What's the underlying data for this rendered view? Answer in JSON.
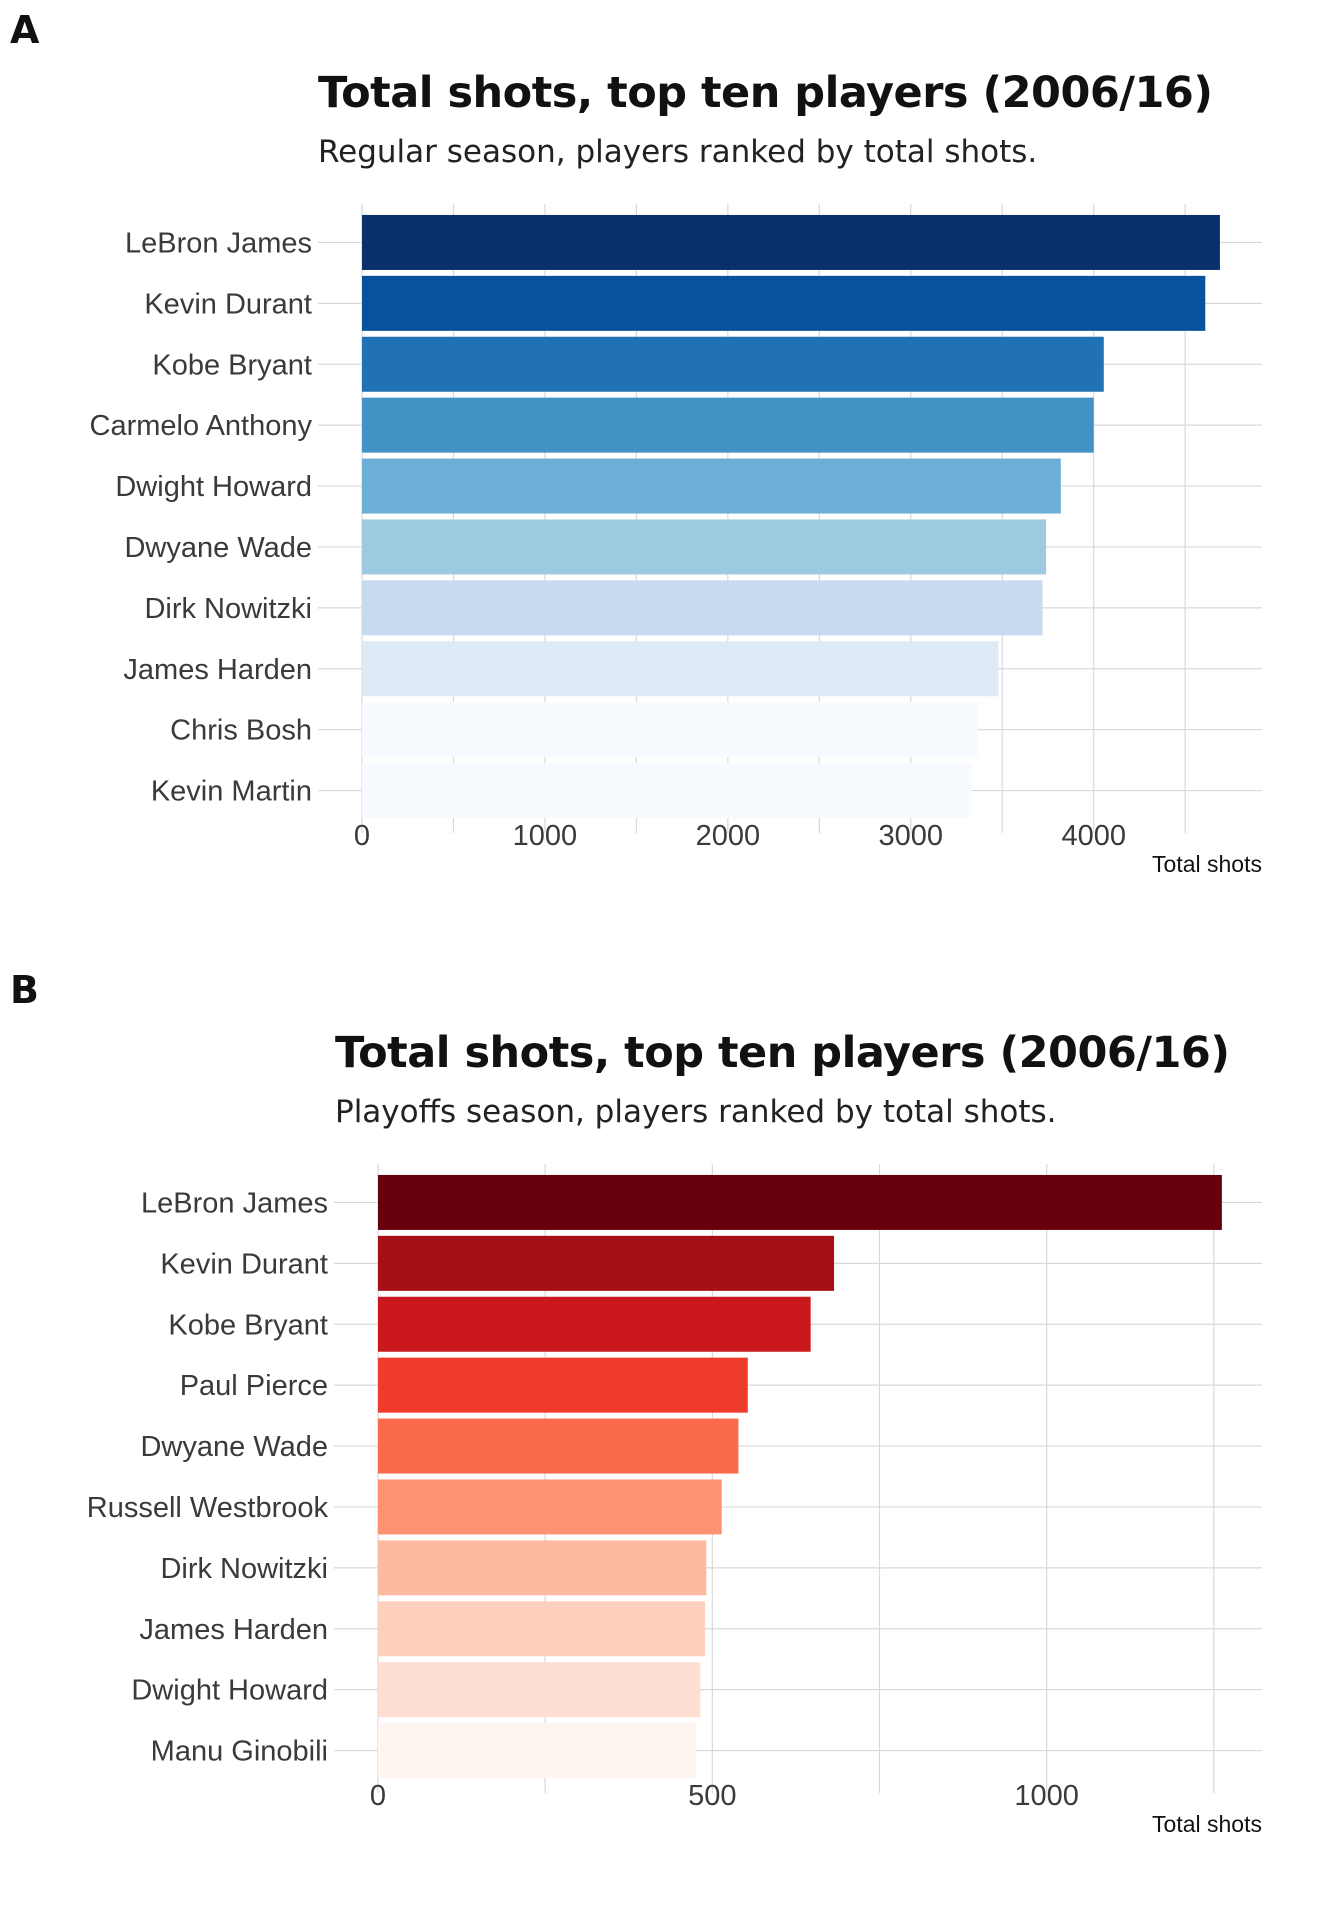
{
  "charts": [
    {
      "panel_label": "A",
      "palette": [
        "#08306b",
        "#08519c",
        "#2171b5",
        "#4292c6",
        "#6baed6",
        "#9ecae1",
        "#c6dbef",
        "#deebf7",
        "#f7fbff",
        "#f7fbff"
      ],
      "chart_data": {
        "type": "bar",
        "orientation": "horizontal",
        "title": "Total shots, top ten players (2006/16)",
        "subtitle": "Regular season, players ranked by total shots.",
        "xlabel": "Total shots",
        "ylabel": "",
        "categories": [
          "LeBron James",
          "Kevin Durant",
          "Kobe Bryant",
          "Carmelo Anthony",
          "Dwight Howard",
          "Dwyane Wade",
          "Dirk Nowitzki",
          "James Harden",
          "Chris Bosh",
          "Kevin Martin"
        ],
        "values": [
          4690,
          4610,
          4055,
          4000,
          3820,
          3740,
          3720,
          3480,
          3370,
          3330
        ],
        "xlim": [
          0,
          4920
        ],
        "xticks": [
          0,
          1000,
          2000,
          3000,
          4000
        ],
        "xticks_labels": [
          "0",
          "1000",
          "2000",
          "3000",
          "4000"
        ],
        "grid": true
      }
    },
    {
      "panel_label": "B",
      "palette": [
        "#67000d",
        "#a50f15",
        "#cb181d",
        "#ef3b2c",
        "#fb6a4a",
        "#fc9272",
        "#fcbba1",
        "#fdd0bd",
        "#fee0d2",
        "#fff5f0"
      ],
      "chart_data": {
        "type": "bar",
        "orientation": "horizontal",
        "title": "Total shots, top ten players (2006/16)",
        "subtitle": "Playoffs season, players ranked by total shots.",
        "xlabel": "Total shots",
        "ylabel": "",
        "categories": [
          "LeBron James",
          "Kevin Durant",
          "Kobe Bryant",
          "Paul Pierce",
          "Dwyane Wade",
          "Russell Westbrook",
          "Dirk Nowitzki",
          "James Harden",
          "Dwight Howard",
          "Manu Ginobili"
        ],
        "values": [
          1262,
          682,
          647,
          553,
          539,
          514,
          491,
          489,
          482,
          476
        ],
        "xlim": [
          0,
          1322
        ],
        "xticks": [
          0,
          500,
          1000
        ],
        "xticks_labels": [
          "0",
          "500",
          "1000"
        ],
        "grid": true
      }
    }
  ]
}
